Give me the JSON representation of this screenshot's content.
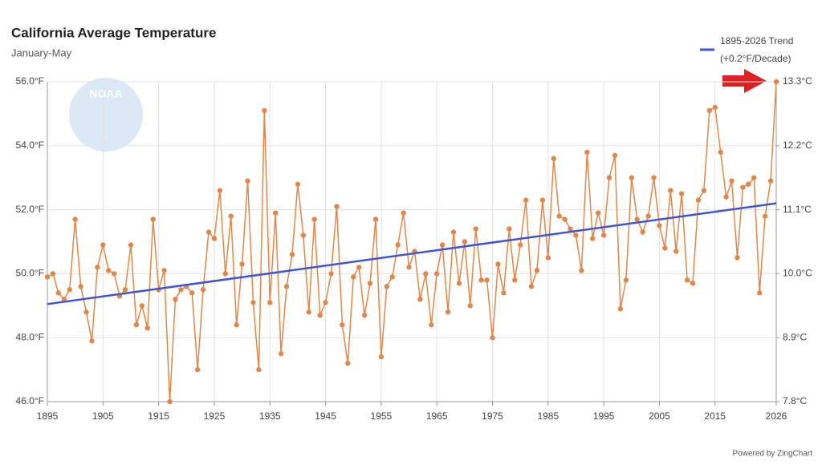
{
  "chart_data": {
    "type": "line",
    "title": "California Average Temperature",
    "subtitle": "January-May",
    "legend_note": "(+0.2°F/Decade)",
    "credit": "Powered by ZingChart",
    "logo": "NOAA",
    "x": [
      1895,
      1896,
      1897,
      1898,
      1899,
      1900,
      1901,
      1902,
      1903,
      1904,
      1905,
      1906,
      1907,
      1908,
      1909,
      1910,
      1911,
      1912,
      1913,
      1914,
      1915,
      1916,
      1917,
      1918,
      1919,
      1920,
      1921,
      1922,
      1923,
      1924,
      1925,
      1926,
      1927,
      1928,
      1929,
      1930,
      1931,
      1932,
      1933,
      1934,
      1935,
      1936,
      1937,
      1938,
      1939,
      1940,
      1941,
      1942,
      1943,
      1944,
      1945,
      1946,
      1947,
      1948,
      1949,
      1950,
      1951,
      1952,
      1953,
      1954,
      1955,
      1956,
      1957,
      1958,
      1959,
      1960,
      1961,
      1962,
      1963,
      1964,
      1965,
      1966,
      1967,
      1968,
      1969,
      1970,
      1971,
      1972,
      1973,
      1974,
      1975,
      1976,
      1977,
      1978,
      1979,
      1980,
      1981,
      1982,
      1983,
      1984,
      1985,
      1986,
      1987,
      1988,
      1989,
      1990,
      1991,
      1992,
      1993,
      1994,
      1995,
      1996,
      1997,
      1998,
      1999,
      2000,
      2001,
      2002,
      2003,
      2004,
      2005,
      2006,
      2007,
      2008,
      2009,
      2010,
      2011,
      2012,
      2013,
      2014,
      2015,
      2016,
      2017,
      2018,
      2019,
      2020,
      2021,
      2022,
      2023,
      2024,
      2025,
      2026
    ],
    "series": [
      {
        "color": "#e0874c",
        "values": [
          49.9,
          50.0,
          49.4,
          49.2,
          49.5,
          51.7,
          49.6,
          48.8,
          47.9,
          50.2,
          50.9,
          50.1,
          50.0,
          49.3,
          49.5,
          50.9,
          48.4,
          49.0,
          48.3,
          51.7,
          49.5,
          50.1,
          46.0,
          49.2,
          49.5,
          49.6,
          49.4,
          47.0,
          49.5,
          51.3,
          51.1,
          52.6,
          50.0,
          51.8,
          48.4,
          50.3,
          52.9,
          49.1,
          47.0,
          55.1,
          49.1,
          51.9,
          47.5,
          49.6,
          50.6,
          52.8,
          51.2,
          48.8,
          51.7,
          48.7,
          49.1,
          50.0,
          52.1,
          48.4,
          47.2,
          49.9,
          50.2,
          48.7,
          49.7,
          51.7,
          47.4,
          49.6,
          49.9,
          50.9,
          51.9,
          50.2,
          50.7,
          49.2,
          50.0,
          48.4,
          50.0,
          50.9,
          48.8,
          51.3,
          49.7,
          51.0,
          49.0,
          51.4,
          49.8,
          49.8,
          48.0,
          50.3,
          49.4,
          51.4,
          49.8,
          50.9,
          52.3,
          49.6,
          50.1,
          52.3,
          50.5,
          53.6,
          51.8,
          51.7,
          51.4,
          51.2,
          50.1,
          53.8,
          51.1,
          51.9,
          51.2,
          53.0,
          53.7,
          48.9,
          49.8,
          53.0,
          51.7,
          51.3,
          51.8,
          53.0,
          51.5,
          50.8,
          52.6,
          50.7,
          52.5,
          49.8,
          49.7,
          52.3,
          52.6,
          55.1,
          55.2,
          53.8,
          52.4,
          52.9,
          50.5,
          52.7,
          52.8,
          53.0,
          49.4,
          51.8,
          52.9,
          56.0
        ]
      },
      {
        "name": "1895-2026 Trend",
        "color": "#3f55d4",
        "x": [
          1895,
          2026
        ],
        "values": [
          49.05,
          52.2
        ]
      }
    ],
    "xlim": [
      1895,
      2026
    ],
    "xticks": [
      1895,
      1905,
      1915,
      1925,
      1935,
      1945,
      1955,
      1965,
      1975,
      1985,
      1995,
      2005,
      2015,
      2026
    ],
    "ylim": [
      46,
      56
    ],
    "yticks": [
      {
        "value": 46,
        "label": "46.0°F"
      },
      {
        "value": 48,
        "label": "48.0°F"
      },
      {
        "value": 50,
        "label": "50.0°F"
      },
      {
        "value": 52,
        "label": "52.0°F"
      },
      {
        "value": 54,
        "label": "54.0°F"
      },
      {
        "value": 56,
        "label": "56.0°F"
      }
    ],
    "y2lim": [
      7.8,
      13.3
    ],
    "y2ticks": [
      {
        "value": 7.8,
        "label": "7.8°C"
      },
      {
        "value": 8.9,
        "label": "8.9°C"
      },
      {
        "value": 10.0,
        "label": "10.0°C"
      },
      {
        "value": 11.1,
        "label": "11.1°C"
      },
      {
        "value": 12.2,
        "label": "12.2°C"
      },
      {
        "value": 13.3,
        "label": "13.3°C"
      }
    ],
    "grid": true
  }
}
